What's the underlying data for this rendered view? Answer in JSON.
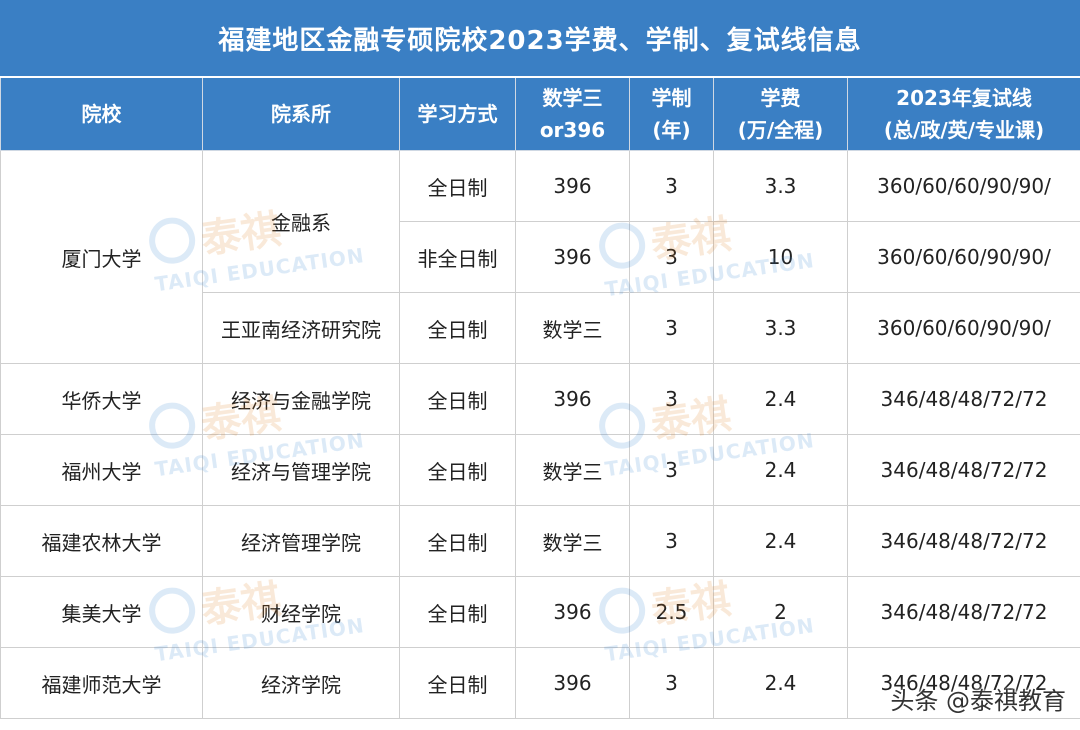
{
  "title": "福建地区金融专硕院校2023学费、学制、复试线信息",
  "headers": {
    "school": "院校",
    "dept": "院系所",
    "mode": "学习方式",
    "math_l1": "数学三",
    "math_l2": "or396",
    "years_l1": "学制",
    "years_l2": "(年)",
    "fee_l1": "学费",
    "fee_l2": "(万/全程)",
    "line_l1": "2023年复试线",
    "line_l2": "(总/政/英/专业课)"
  },
  "rows": [
    {
      "school": "厦门大学",
      "dept": "金融系",
      "mode": "全日制",
      "math": "396",
      "years": "3",
      "fee": "3.3",
      "line": "360/60/60/90/90/"
    },
    {
      "mode": "非全日制",
      "math": "396",
      "years": "3",
      "fee": "10",
      "line": "360/60/60/90/90/"
    },
    {
      "dept": "王亚南经济研究院",
      "mode": "全日制",
      "math": "数学三",
      "years": "3",
      "fee": "3.3",
      "line": "360/60/60/90/90/"
    },
    {
      "school": "华侨大学",
      "dept": "经济与金融学院",
      "mode": "全日制",
      "math": "396",
      "years": "3",
      "fee": "2.4",
      "line": "346/48/48/72/72"
    },
    {
      "school": "福州大学",
      "dept": "经济与管理学院",
      "mode": "全日制",
      "math": "数学三",
      "years": "3",
      "fee": "2.4",
      "line": "346/48/48/72/72"
    },
    {
      "school": "福建农林大学",
      "dept": "经济管理学院",
      "mode": "全日制",
      "math": "数学三",
      "years": "3",
      "fee": "2.4",
      "line": "346/48/48/72/72"
    },
    {
      "school": "集美大学",
      "dept": "财经学院",
      "mode": "全日制",
      "math": "396",
      "years": "2.5",
      "fee": "2",
      "line": "346/48/48/72/72"
    },
    {
      "school": "福建师范大学",
      "dept": "经济学院",
      "mode": "全日制",
      "math": "396",
      "years": "3",
      "fee": "2.4",
      "line": "346/48/48/72/72"
    }
  ],
  "watermark": {
    "cn": "泰祺",
    "en": "TAIQI EDUCATION"
  },
  "credit": "头条 @泰祺教育",
  "colors": {
    "header_blue": "#3a7fc4",
    "grid": "#cfcfcf"
  }
}
